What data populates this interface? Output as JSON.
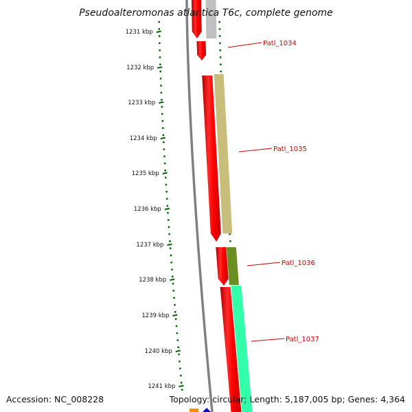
{
  "title": "Pseudoalteromonas atlantica T6c, complete genome",
  "ticks": [
    "1231 kbp",
    "1232 kbp",
    "1233 kbp",
    "1234 kbp",
    "1235 kbp",
    "1236 kbp",
    "1237 kbp",
    "1238 kbp",
    "1239 kbp",
    "1240 kbp",
    "1241 kbp"
  ],
  "genes": [
    {
      "label": "Patl_1034",
      "color": "#c0c0c0"
    },
    {
      "label": "Patl_1035",
      "color": "#c8bd7a"
    },
    {
      "label": "Patl_1036",
      "color": "#6b8e23"
    },
    {
      "label": "Patl_1037",
      "color": "#33ffaa"
    }
  ],
  "colors": {
    "forward_strand_cds": "#ff0000",
    "backbone": "#808080",
    "ticks": "#006400",
    "label_leader": "#cc0000",
    "bottom_feature_1": "#ff8c00",
    "bottom_feature_2": "#0000cc"
  },
  "footer": {
    "accession": "Accession: NC_008228",
    "summary": "Topology: circular; Length: 5,187,005 bp; Genes: 4,364"
  }
}
